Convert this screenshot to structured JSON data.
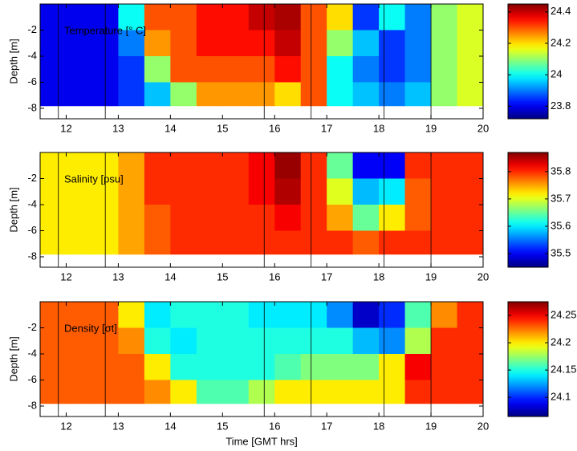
{
  "chart_data": [
    {
      "type": "heatmap",
      "title": "Temperature [° C]",
      "ylabel": "Depth [m]",
      "xlim": [
        11.5,
        20
      ],
      "ylim": [
        -8.8,
        0
      ],
      "xticks": [
        12,
        13,
        14,
        15,
        16,
        17,
        18,
        19,
        20
      ],
      "yticks": [
        -2,
        -4,
        -6,
        -8
      ],
      "x_edges": [
        11.5,
        12,
        12.5,
        13,
        13.5,
        14,
        14.5,
        15,
        15.5,
        16,
        16.5,
        17,
        17.5,
        18,
        18.5,
        19,
        19.5,
        20
      ],
      "y_edges": [
        0,
        -2,
        -4,
        -6,
        -7.8
      ],
      "z": [
        [
          23.8,
          23.8,
          23.8,
          24.0,
          24.3,
          24.3,
          24.35,
          24.35,
          24.4,
          24.42,
          24.3,
          24.2,
          23.85,
          24.0,
          23.9,
          24.1,
          24.15
        ],
        [
          23.8,
          23.8,
          23.8,
          23.9,
          24.25,
          24.3,
          24.35,
          24.35,
          24.35,
          24.4,
          24.3,
          24.1,
          23.95,
          23.85,
          23.9,
          24.1,
          24.15
        ],
        [
          23.8,
          23.8,
          23.8,
          23.85,
          24.1,
          24.3,
          24.3,
          24.3,
          24.3,
          24.35,
          24.3,
          24.0,
          23.9,
          23.85,
          23.9,
          24.1,
          24.15
        ],
        [
          23.8,
          23.8,
          23.8,
          23.85,
          23.95,
          24.1,
          24.25,
          24.25,
          24.25,
          24.2,
          24.3,
          24.0,
          23.95,
          23.9,
          23.95,
          24.1,
          24.15
        ]
      ],
      "clim": [
        23.72,
        24.45
      ],
      "cticks": [
        23.8,
        24,
        24.2,
        24.4
      ],
      "vlines": [
        11.85,
        12.75,
        15.8,
        16.7,
        18.1,
        19.0
      ]
    },
    {
      "type": "heatmap",
      "title": "Salinity [psu]",
      "ylabel": "Depth [m]",
      "xlim": [
        11.5,
        20
      ],
      "ylim": [
        -8.8,
        0
      ],
      "xticks": [
        12,
        13,
        14,
        15,
        16,
        17,
        18,
        19,
        20
      ],
      "yticks": [
        -2,
        -4,
        -6,
        -8
      ],
      "x_edges": [
        11.5,
        12,
        12.5,
        13,
        13.5,
        14,
        14.5,
        15,
        15.5,
        16,
        16.5,
        17,
        17.5,
        18,
        18.5,
        19,
        19.5,
        20
      ],
      "y_edges": [
        0,
        -2,
        -4,
        -6,
        -7.8
      ],
      "z": [
        [
          35.72,
          35.72,
          35.72,
          35.75,
          35.8,
          35.8,
          35.8,
          35.8,
          35.82,
          35.86,
          35.8,
          35.65,
          35.5,
          35.5,
          35.8,
          35.8,
          35.8
        ],
        [
          35.72,
          35.72,
          35.72,
          35.75,
          35.8,
          35.8,
          35.8,
          35.8,
          35.82,
          35.85,
          35.8,
          35.7,
          35.58,
          35.6,
          35.78,
          35.8,
          35.8
        ],
        [
          35.72,
          35.72,
          35.72,
          35.75,
          35.78,
          35.8,
          35.8,
          35.8,
          35.8,
          35.82,
          35.8,
          35.75,
          35.65,
          35.72,
          35.78,
          35.8,
          35.8
        ],
        [
          35.72,
          35.72,
          35.72,
          35.75,
          35.78,
          35.8,
          35.8,
          35.8,
          35.8,
          35.8,
          35.8,
          35.8,
          35.78,
          35.8,
          35.8,
          35.8,
          35.8
        ]
      ],
      "clim": [
        35.45,
        35.87
      ],
      "cticks": [
        35.5,
        35.6,
        35.7,
        35.8
      ],
      "vlines": [
        11.85,
        12.75,
        15.8,
        16.7,
        18.1,
        19.0
      ]
    },
    {
      "type": "heatmap",
      "title": "Density [σt]",
      "ylabel": "Depth [m]",
      "xlabel": "Time [GMT hrs]",
      "xlim": [
        11.5,
        20
      ],
      "ylim": [
        -8.8,
        0
      ],
      "xticks": [
        12,
        13,
        14,
        15,
        16,
        17,
        18,
        19,
        20
      ],
      "yticks": [
        -2,
        -4,
        -6,
        -8
      ],
      "x_edges": [
        11.5,
        12,
        12.5,
        13,
        13.5,
        14,
        14.5,
        15,
        15.5,
        16,
        16.5,
        17,
        17.5,
        18,
        18.5,
        19,
        19.5,
        20
      ],
      "y_edges": [
        0,
        -2,
        -4,
        -6,
        -7.8
      ],
      "z": [
        [
          24.23,
          24.23,
          24.23,
          24.2,
          24.14,
          24.15,
          24.15,
          24.15,
          24.14,
          24.14,
          24.14,
          24.12,
          24.08,
          24.1,
          24.16,
          24.22,
          24.24
        ],
        [
          24.23,
          24.23,
          24.23,
          24.22,
          24.15,
          24.14,
          24.15,
          24.15,
          24.15,
          24.15,
          24.15,
          24.15,
          24.13,
          24.12,
          24.18,
          24.24,
          24.24
        ],
        [
          24.23,
          24.23,
          24.23,
          24.23,
          24.2,
          24.15,
          24.15,
          24.15,
          24.15,
          24.16,
          24.17,
          24.17,
          24.17,
          24.2,
          24.25,
          24.24,
          24.24
        ],
        [
          24.23,
          24.23,
          24.23,
          24.23,
          24.22,
          24.2,
          24.16,
          24.16,
          24.18,
          24.2,
          24.2,
          24.2,
          24.2,
          24.2,
          24.24,
          24.24,
          24.24
        ]
      ],
      "clim": [
        24.065,
        24.275
      ],
      "cticks": [
        24.1,
        24.15,
        24.2,
        24.25
      ],
      "vlines": [
        11.85,
        12.75,
        15.8,
        16.7,
        18.1,
        19.0
      ]
    }
  ]
}
